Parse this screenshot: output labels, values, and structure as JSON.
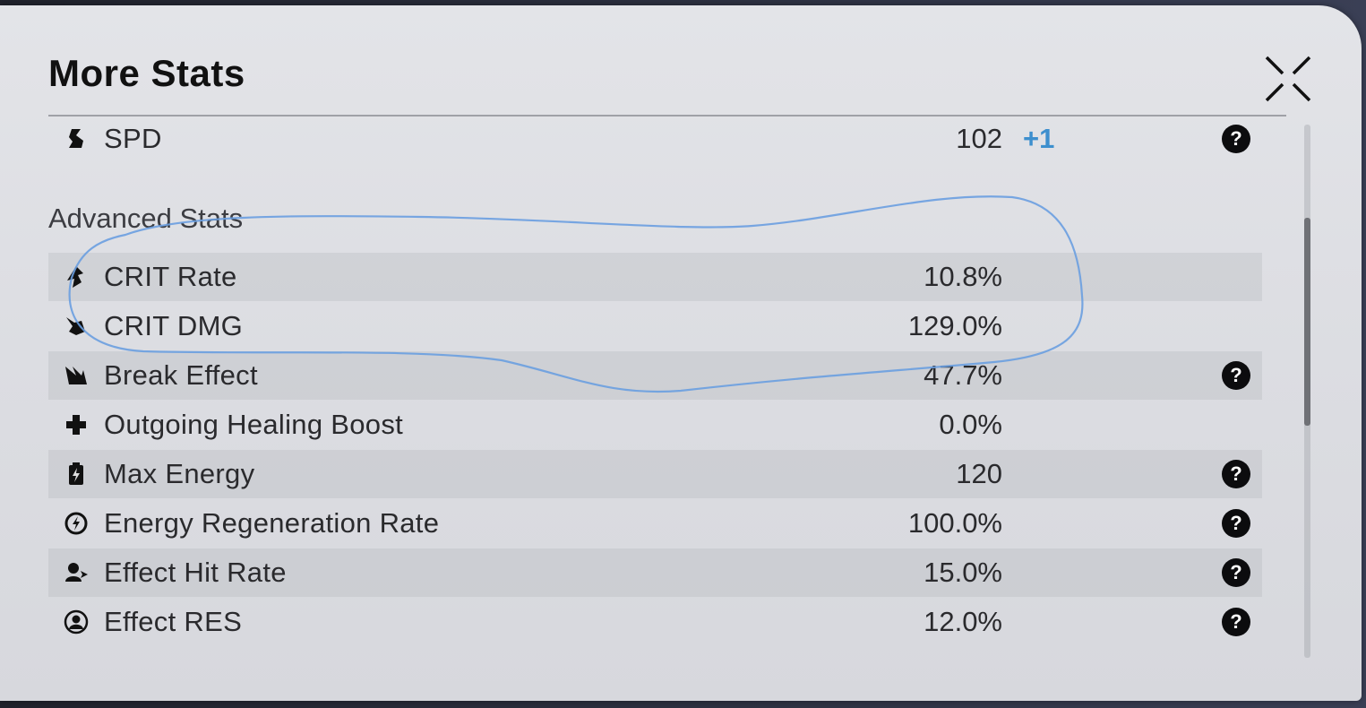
{
  "dialog": {
    "title": "More Stats",
    "close_icon": "close-x-icon"
  },
  "base_stats": [
    {
      "icon": "speed-boot-icon",
      "label": "SPD",
      "value": "102",
      "bonus": "+1",
      "help": "?"
    }
  ],
  "advanced": {
    "section_title": "Advanced Stats",
    "stats": [
      {
        "icon": "crit-rate-icon",
        "label": "CRIT Rate",
        "value": "10.8%",
        "help": ""
      },
      {
        "icon": "crit-dmg-icon",
        "label": "CRIT DMG",
        "value": "129.0%",
        "help": ""
      },
      {
        "icon": "break-effect-icon",
        "label": "Break Effect",
        "value": "47.7%",
        "help": "?"
      },
      {
        "icon": "healing-cross-icon",
        "label": "Outgoing Healing Boost",
        "value": "0.0%",
        "help": ""
      },
      {
        "icon": "energy-battery-icon",
        "label": "Max Energy",
        "value": "120",
        "help": "?"
      },
      {
        "icon": "energy-regen-icon",
        "label": "Energy Regeneration Rate",
        "value": "100.0%",
        "help": "?"
      },
      {
        "icon": "effect-hit-icon",
        "label": "Effect Hit Rate",
        "value": "15.0%",
        "help": "?"
      },
      {
        "icon": "effect-res-icon",
        "label": "Effect RES",
        "value": "12.0%",
        "help": "?"
      }
    ]
  },
  "colors": {
    "bonus": "#3d8fce",
    "annotation_stroke": "#6a9fe0"
  }
}
